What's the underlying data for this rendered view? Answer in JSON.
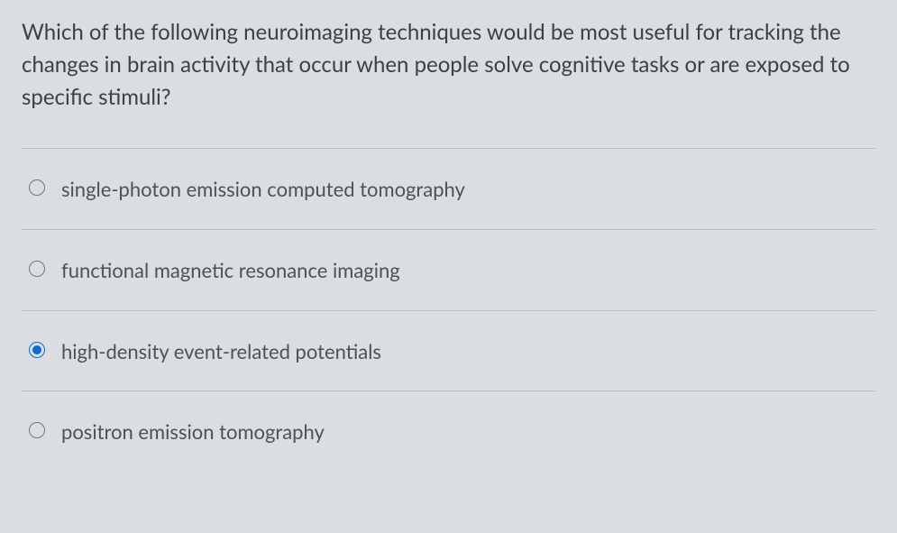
{
  "question": {
    "text": "Which of the following neuroimaging techniques would be most useful for tracking the changes in brain activity that occur when people solve cognitive tasks or are exposed to specific stimuli?"
  },
  "options": [
    {
      "label": "single-photon emission computed tomography",
      "selected": false
    },
    {
      "label": "functional magnetic resonance imaging",
      "selected": false
    },
    {
      "label": "high-density event-related potentials",
      "selected": true
    },
    {
      "label": "positron emission tomography",
      "selected": false
    }
  ],
  "colors": {
    "background": "#dadee0",
    "text": "#3a4249",
    "option_text": "#49535a",
    "divider": "#b8bfc3",
    "radio_border": "#6e7a80",
    "radio_selected": "#0d6ecf"
  },
  "typography": {
    "question_fontsize": 24,
    "option_fontsize": 22,
    "font_family": "Segoe UI / Lato"
  }
}
